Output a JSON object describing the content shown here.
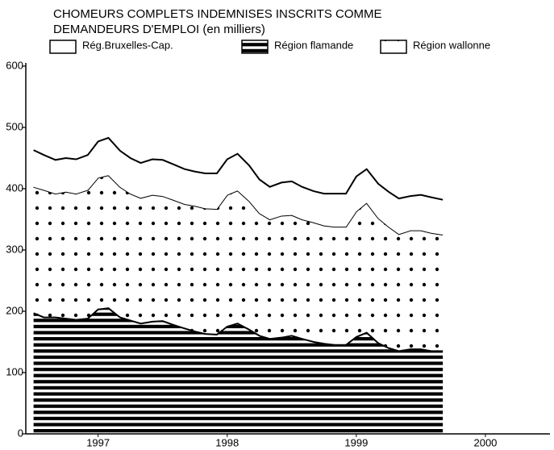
{
  "chart_data": {
    "type": "stacked_area",
    "title": "CHOMEURS COMPLETS INDEMNISES INSCRITS COMME",
    "subtitle": "DEMANDEURS D'EMPLOI (en milliers)",
    "x": [
      1997.0,
      1997.08,
      1997.17,
      1997.25,
      1997.33,
      1997.42,
      1997.5,
      1997.58,
      1997.67,
      1997.75,
      1997.83,
      1997.92,
      1998.0,
      1998.08,
      1998.17,
      1998.25,
      1998.33,
      1998.42,
      1998.5,
      1998.58,
      1998.67,
      1998.75,
      1998.83,
      1998.92,
      1999.0,
      1999.08,
      1999.17,
      1999.25,
      1999.33,
      1999.42,
      1999.5,
      1999.58,
      1999.67,
      1999.75,
      1999.83,
      1999.92,
      2000.0,
      2000.08,
      2000.17
    ],
    "series": [
      {
        "name": "Région flamande",
        "color": "#000000",
        "pattern": "stripes",
        "values": [
          197,
          190,
          190,
          188,
          186,
          188,
          203,
          205,
          190,
          185,
          180,
          183,
          184,
          178,
          172,
          167,
          163,
          162,
          175,
          180,
          170,
          160,
          155,
          157,
          160,
          155,
          150,
          147,
          145,
          145,
          158,
          165,
          148,
          140,
          135,
          138,
          138,
          135,
          135
        ]
      },
      {
        "name": "Région wallonne",
        "color": "#000000",
        "pattern": "dots",
        "values": [
          206,
          208,
          202,
          207,
          206,
          210,
          215,
          217,
          213,
          207,
          205,
          207,
          204,
          204,
          203,
          205,
          205,
          205,
          215,
          217,
          210,
          200,
          195,
          199,
          197,
          195,
          195,
          193,
          193,
          193,
          205,
          212,
          204,
          198,
          191,
          194,
          194,
          193,
          190
        ]
      },
      {
        "name": "Rég.Bruxelles-Cap.",
        "color": "#000000",
        "pattern": "none",
        "values": [
          60,
          57,
          55,
          55,
          56,
          57,
          59,
          61,
          59,
          58,
          57,
          58,
          59,
          58,
          57,
          56,
          57,
          58,
          58,
          60,
          58,
          55,
          53,
          54,
          55,
          53,
          51,
          52,
          54,
          54,
          57,
          55,
          56,
          57,
          58,
          56,
          58,
          58,
          57
        ]
      }
    ],
    "xlim": [
      1996.94,
      2001.0
    ],
    "xticks": [
      {
        "value": 1997.5,
        "label": "1997"
      },
      {
        "value": 1998.5,
        "label": "1998"
      },
      {
        "value": 1999.5,
        "label": "1999"
      },
      {
        "value": 2000.5,
        "label": "2000"
      }
    ],
    "ylim": [
      0,
      600
    ],
    "yticks": [
      0,
      100,
      200,
      300,
      400,
      500,
      600
    ],
    "grid": false
  }
}
